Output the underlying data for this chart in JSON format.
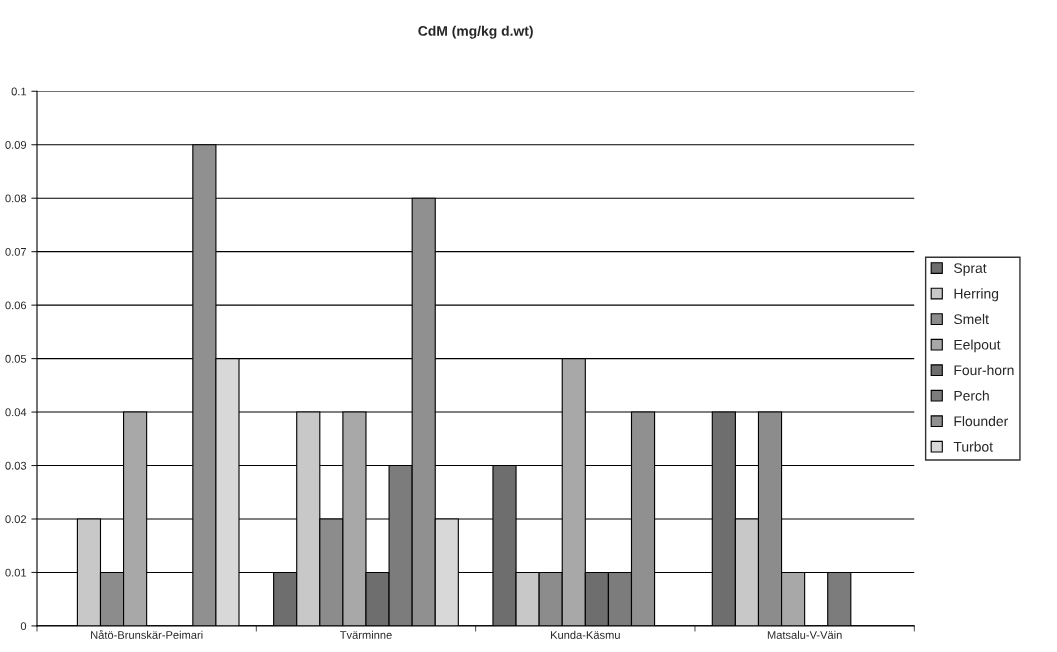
{
  "chart_data": {
    "type": "bar",
    "title": "CdM (mg/kg d.wt)",
    "categories": [
      "Nåtö-Brunskär-Peimari",
      "Tvärminne",
      "Kunda-Käsmu",
      "Matsalu-V-Väin"
    ],
    "series": [
      {
        "name": "Sprat",
        "color": "#6e6e6e",
        "values": [
          null,
          0.01,
          0.03,
          0.04
        ]
      },
      {
        "name": "Herring",
        "color": "#c8c8c8",
        "values": [
          0.02,
          0.04,
          0.01,
          0.02
        ]
      },
      {
        "name": "Smelt",
        "color": "#8c8c8c",
        "values": [
          0.01,
          0.02,
          0.01,
          0.04
        ]
      },
      {
        "name": "Eelpout",
        "color": "#a8a8a8",
        "values": [
          0.04,
          0.04,
          0.05,
          0.01
        ]
      },
      {
        "name": "Four-horn",
        "color": "#6e6e6e",
        "values": [
          null,
          0.01,
          0.01,
          null
        ]
      },
      {
        "name": "Perch",
        "color": "#7c7c7c",
        "values": [
          null,
          0.03,
          0.01,
          0.01
        ]
      },
      {
        "name": "Flounder",
        "color": "#909090",
        "values": [
          0.09,
          0.08,
          0.04,
          null
        ]
      },
      {
        "name": "Turbot",
        "color": "#d8d8d8",
        "values": [
          0.05,
          0.02,
          null,
          null
        ]
      }
    ],
    "ylim": [
      0,
      0.1
    ],
    "yticks": [
      0,
      0.01,
      0.02,
      0.03,
      0.04,
      0.05,
      0.06,
      0.07,
      0.08,
      0.09,
      0.1
    ],
    "grid": "y",
    "legend": "right"
  }
}
